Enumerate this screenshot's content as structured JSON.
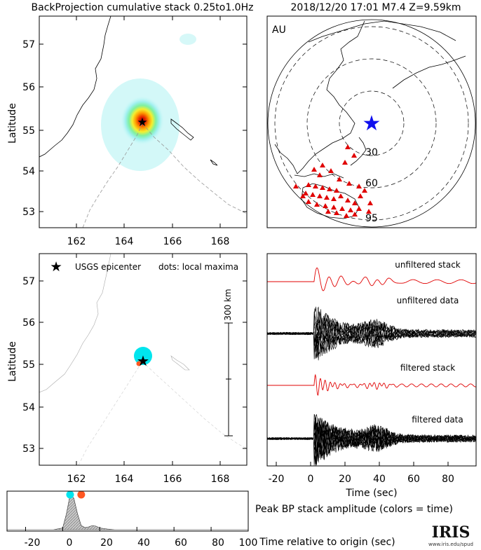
{
  "header": {
    "left_title": "BackProjection cumulative stack 0.25to1.0Hz",
    "right_title": "2018/12/20 17:01  M7.4  Z=9.59km"
  },
  "map_panels": {
    "xticks": [
      "162",
      "164",
      "166",
      "168"
    ],
    "yticks": [
      "53",
      "54",
      "55",
      "56",
      "57"
    ],
    "ylabel": "Latitude"
  },
  "globe": {
    "network": "AU",
    "ring_labels": [
      "30",
      "60",
      "95"
    ]
  },
  "lower_map": {
    "legend_star": "USGS epicenter",
    "legend_dots": "dots: local maxima",
    "scale_label": "300 km",
    "epicenter": {
      "lon": 164.7,
      "lat": 55.1
    },
    "maxima": [
      {
        "lon": 164.7,
        "lat": 55.2,
        "color": "#00e5ee"
      },
      {
        "lon": 164.55,
        "lat": 55.02,
        "color": "#ff5722"
      }
    ]
  },
  "upper_map": {
    "hotspot": {
      "lon": 164.7,
      "lat": 55.2
    }
  },
  "waveforms": {
    "labels": [
      "unfiltered stack",
      "unfiltered data",
      "filtered stack",
      "filtered data"
    ],
    "xticks": [
      "-20",
      "0",
      "20",
      "40",
      "60",
      "80"
    ],
    "xlabel": "Time (sec)"
  },
  "peak_panel": {
    "title": "Peak BP stack amplitude (colors = time)",
    "xticks": [
      "-20",
      "0",
      "20",
      "40",
      "60",
      "80",
      "100"
    ],
    "xlabel": "Time relative to origin (sec)",
    "markers": [
      {
        "time": 4,
        "color": "#00e5ee"
      },
      {
        "time": 10,
        "color": "#ff5722"
      }
    ]
  },
  "logo": {
    "name": "IRIS",
    "url": "www.iris.edu/spud"
  },
  "chart_data": {
    "type": "area",
    "title": "Peak BP stack amplitude (colors = time)",
    "xlabel": "Time relative to origin (sec)",
    "ylabel": "",
    "xlim": [
      -30,
      100
    ],
    "x": [
      -30,
      -5,
      0,
      2,
      4,
      6,
      8,
      10,
      12,
      14,
      16,
      18,
      20,
      24,
      28,
      100
    ],
    "values": [
      0,
      0,
      0.05,
      0.45,
      1.0,
      0.9,
      0.45,
      0.12,
      0.06,
      0.08,
      0.12,
      0.1,
      0.05,
      0.02,
      0,
      0
    ]
  }
}
